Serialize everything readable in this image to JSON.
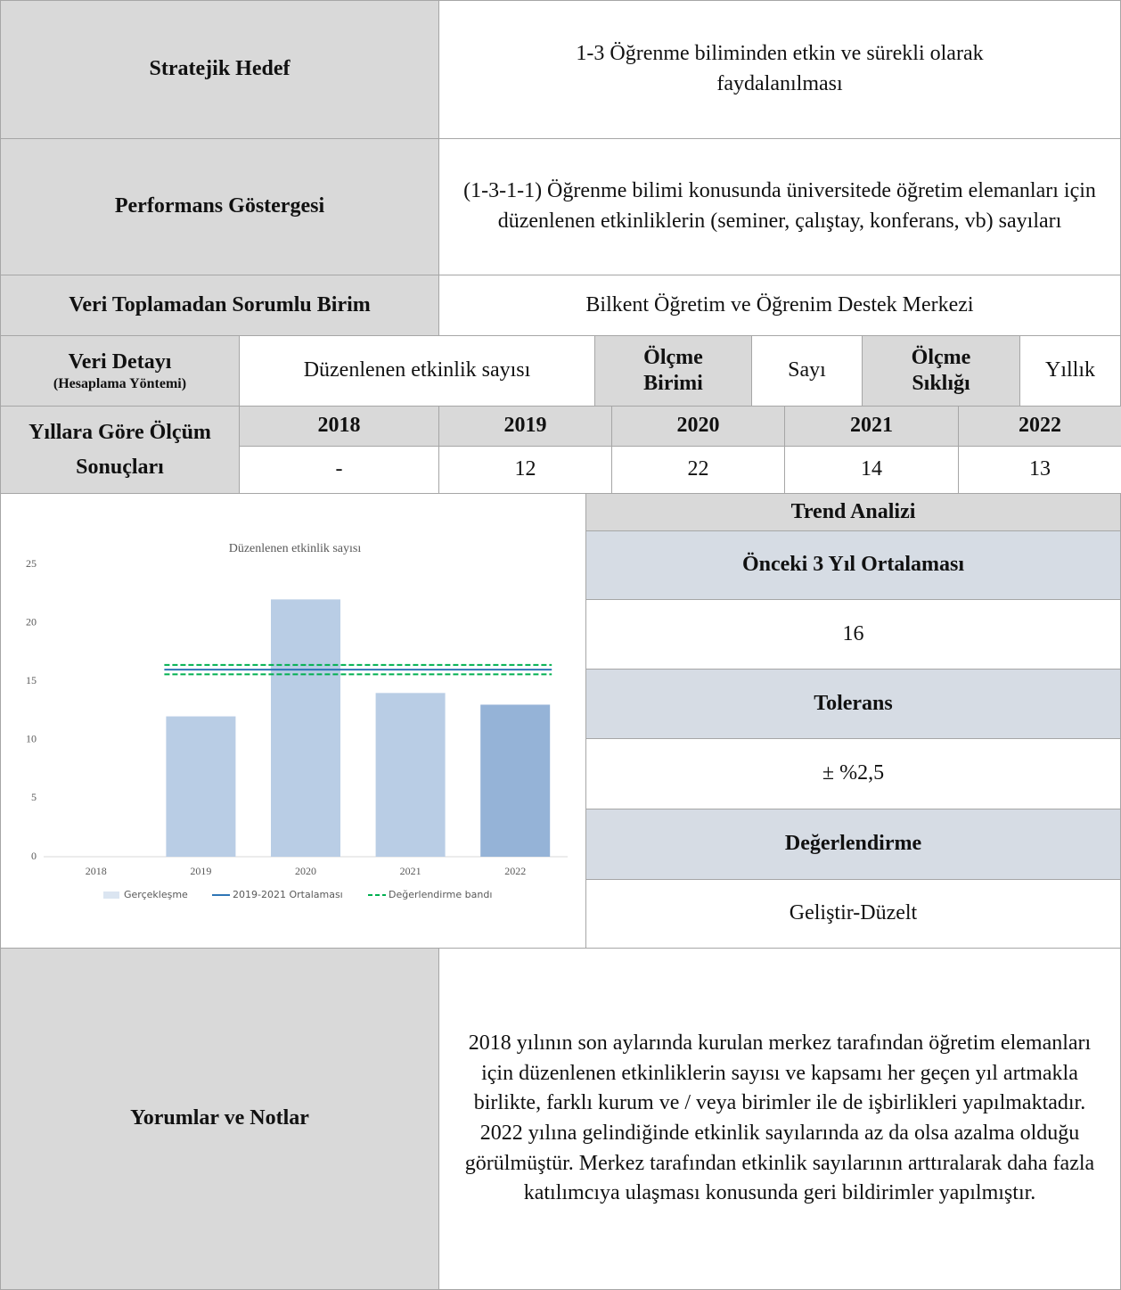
{
  "rows": {
    "strategic_goal": {
      "label": "Stratejik Hedef",
      "value": "1-3 Öğrenme biliminden etkin ve sürekli olarak faydalanılması"
    },
    "indicator": {
      "label": "Performans Göstergesi",
      "value": "(1-3-1-1) Öğrenme bilimi konusunda üniversitede öğretim elemanları için düzenlenen etkinliklerin (seminer, çalıştay, konferans, vb) sayıları"
    },
    "unit": {
      "label": "Veri Toplamadan Sorumlu Birim",
      "value": "Bilkent Öğretim ve Öğrenim Destek Merkezi"
    },
    "detail": {
      "label": "Veri Detayı",
      "sublabel": "(Hesaplama Yöntemi)",
      "value": "Düzenlenen etkinlik sayısı",
      "measure_label": "Ölçme Birimi",
      "measure": "Sayı",
      "freq_label": "Ölçme Sıklığı",
      "freq": "Yıllık"
    },
    "results": {
      "label": "Yıllara Göre Ölçüm Sonuçları",
      "years": [
        "2018",
        "2019",
        "2020",
        "2021",
        "2022"
      ],
      "values": [
        "-",
        "12",
        "22",
        "14",
        "13"
      ]
    }
  },
  "trend": {
    "title": "Trend Analizi",
    "average_label": "Önceki 3 Yıl Ortalaması",
    "average": "16",
    "tolerance_label": "Tolerans",
    "tolerance": "± %2,5",
    "evaluation_label": "Değerlendirme",
    "evaluation": "Geliştir-Düzelt"
  },
  "comments": {
    "label": "Yorumlar ve Notlar",
    "text": "2018 yılının son aylarında kurulan merkez tarafından öğretim elemanları için düzenlenen etkinliklerin sayısı ve kapsamı her geçen yıl artmakla birlikte, farklı kurum ve / veya birimler ile de işbirlikleri yapılmaktadır. 2022 yılına gelindiğinde etkinlik sayılarında az da olsa azalma olduğu görülmüştür. Merkez tarafından etkinlik sayılarının arttıralarak daha fazla katılımcıya ulaşması konusunda geri bildirimler yapılmıştır."
  },
  "chart_data": {
    "type": "bar",
    "title": "Düzenlenen etkinlik sayısı",
    "categories": [
      "2018",
      "2019",
      "2020",
      "2021",
      "2022"
    ],
    "ylim": [
      0,
      25
    ],
    "yticks": [
      0,
      5,
      10,
      15,
      20,
      25
    ],
    "grid": false,
    "series": [
      {
        "name": "Gerçekleşme",
        "color": "#dbe5f1",
        "values": [
          null,
          12,
          22,
          14,
          13
        ],
        "colors": [
          "#b9cde5",
          "#b9cde5",
          "#b9cde5",
          "#b9cde5",
          "#95b3d7"
        ]
      },
      {
        "name": "2019-2021 Ortalaması",
        "color": "#2e75b6",
        "type": "line",
        "values": [
          null,
          16,
          16,
          16,
          16
        ]
      },
      {
        "name": "Değerlendirme bandı",
        "color": "#00b050",
        "type": "dashed-band",
        "upper": [
          null,
          16.4,
          16.4,
          16.4,
          16.4
        ],
        "lower": [
          null,
          15.6,
          15.6,
          15.6,
          15.6
        ]
      }
    ]
  }
}
